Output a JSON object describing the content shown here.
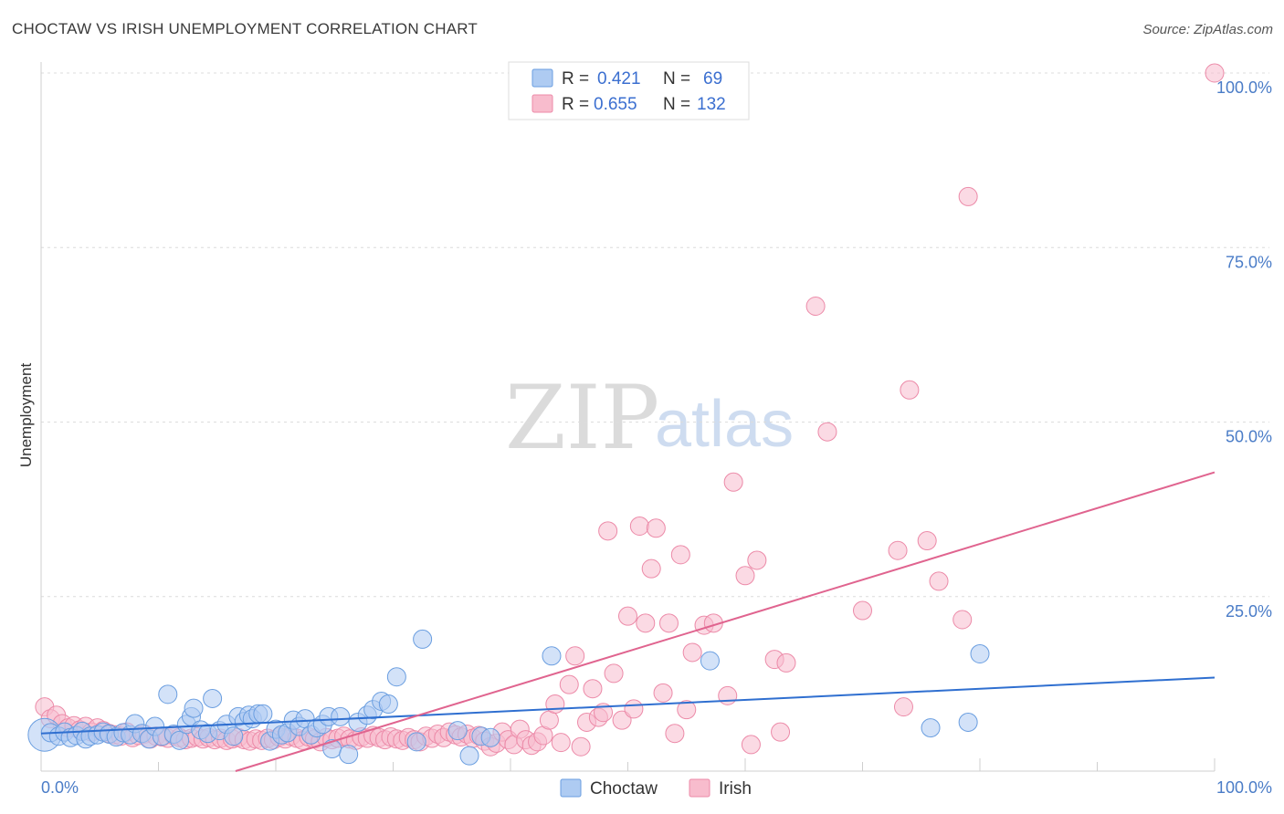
{
  "header": {
    "title": "CHOCTAW VS IRISH UNEMPLOYMENT CORRELATION CHART",
    "source": "Source: ZipAtlas.com"
  },
  "watermark": {
    "zip": "ZIP",
    "atlas": "atlas"
  },
  "legend": {
    "rows": [
      {
        "r_label": "R =",
        "r_value": "0.421",
        "n_label": "N =",
        "n_value": "69",
        "color": "#aecbf2"
      },
      {
        "r_label": "R =",
        "r_value": "0.655",
        "n_label": "N =",
        "n_value": "132",
        "color": "#f8bccd"
      }
    ]
  },
  "bottom_legend": {
    "items": [
      {
        "label": "Choctaw",
        "color": "#aecbf2"
      },
      {
        "label": "Irish",
        "color": "#f8bccd"
      }
    ]
  },
  "colors": {
    "choctaw_fill": "#aecbf2",
    "choctaw_stroke": "#6a9ee0",
    "choctaw_line": "#2f6fd0",
    "irish_fill": "#f8bccd",
    "irish_stroke": "#ec8aa8",
    "irish_line": "#e0648f",
    "tick_text": "#4a7cc7"
  },
  "chart_data": {
    "type": "scatter",
    "title": "CHOCTAW VS IRISH UNEMPLOYMENT CORRELATION CHART",
    "xlabel": "",
    "ylabel": "Unemployment",
    "xlim": [
      0,
      100
    ],
    "ylim": [
      0,
      100
    ],
    "x_tick_labels": [
      {
        "value": 0,
        "label": "0.0%"
      },
      {
        "value": 100,
        "label": "100.0%"
      }
    ],
    "y_tick_labels": [
      {
        "value": 25,
        "label": "25.0%"
      },
      {
        "value": 50,
        "label": "50.0%"
      },
      {
        "value": 75,
        "label": "75.0%"
      },
      {
        "value": 100,
        "label": "100.0%"
      }
    ],
    "grid": true,
    "legend_position": "top-center",
    "series": [
      {
        "name": "Choctaw",
        "r": 0.421,
        "n": 69,
        "trend": {
          "x": [
            0,
            100
          ],
          "y": [
            5.4,
            13.4
          ]
        },
        "points": [
          [
            0.3,
            5.2
          ],
          [
            0.8,
            5.5
          ],
          [
            1.5,
            5.0
          ],
          [
            2.0,
            5.6
          ],
          [
            2.5,
            4.8
          ],
          [
            3.0,
            5.1
          ],
          [
            3.5,
            5.7
          ],
          [
            3.8,
            4.6
          ],
          [
            4.2,
            5.0
          ],
          [
            4.8,
            5.2
          ],
          [
            5.3,
            5.6
          ],
          [
            5.8,
            5.3
          ],
          [
            6.4,
            4.9
          ],
          [
            7.0,
            5.5
          ],
          [
            7.6,
            5.2
          ],
          [
            8.0,
            6.8
          ],
          [
            8.6,
            5.4
          ],
          [
            9.2,
            4.6
          ],
          [
            9.7,
            6.4
          ],
          [
            10.3,
            5.0
          ],
          [
            10.8,
            11.0
          ],
          [
            11.3,
            5.3
          ],
          [
            11.8,
            4.4
          ],
          [
            12.4,
            6.7
          ],
          [
            12.8,
            7.8
          ],
          [
            13.0,
            9.0
          ],
          [
            13.6,
            5.9
          ],
          [
            14.2,
            5.4
          ],
          [
            14.6,
            10.4
          ],
          [
            15.2,
            5.8
          ],
          [
            15.8,
            6.7
          ],
          [
            16.4,
            5.0
          ],
          [
            16.8,
            7.8
          ],
          [
            17.3,
            7.1
          ],
          [
            17.7,
            8.0
          ],
          [
            18.0,
            7.5
          ],
          [
            18.5,
            8.2
          ],
          [
            18.9,
            8.2
          ],
          [
            19.5,
            4.3
          ],
          [
            20.0,
            6.0
          ],
          [
            20.5,
            5.2
          ],
          [
            21.0,
            5.5
          ],
          [
            21.5,
            7.3
          ],
          [
            22.0,
            6.4
          ],
          [
            22.5,
            7.5
          ],
          [
            23.0,
            5.2
          ],
          [
            23.5,
            6.2
          ],
          [
            24.0,
            6.7
          ],
          [
            24.5,
            7.8
          ],
          [
            24.8,
            3.2
          ],
          [
            25.5,
            7.8
          ],
          [
            26.2,
            2.4
          ],
          [
            27.0,
            7.0
          ],
          [
            27.8,
            8.0
          ],
          [
            28.3,
            8.8
          ],
          [
            29.0,
            10.0
          ],
          [
            29.6,
            9.6
          ],
          [
            30.3,
            13.5
          ],
          [
            32.0,
            4.2
          ],
          [
            32.5,
            18.9
          ],
          [
            35.5,
            5.8
          ],
          [
            36.5,
            2.2
          ],
          [
            37.5,
            5.0
          ],
          [
            38.3,
            4.8
          ],
          [
            43.5,
            16.5
          ],
          [
            57.0,
            15.8
          ],
          [
            75.8,
            6.2
          ],
          [
            79.0,
            7.0
          ],
          [
            80.0,
            16.8
          ]
        ],
        "sizes": [
          18,
          10,
          10,
          10,
          10,
          10,
          10,
          10,
          10,
          10,
          10,
          10,
          10,
          10,
          10,
          10,
          10,
          10,
          10,
          10,
          10,
          10,
          10,
          10,
          10,
          10,
          10,
          10,
          10,
          10,
          10,
          10,
          10,
          10,
          10,
          10,
          10,
          10,
          10,
          10,
          10,
          10,
          10,
          10,
          10,
          10,
          10,
          10,
          10,
          10,
          10,
          10,
          10,
          10,
          10,
          10,
          10,
          10,
          10,
          10,
          10,
          10,
          10,
          10,
          10,
          10,
          10,
          10,
          10
        ]
      },
      {
        "name": "Irish",
        "r": 0.655,
        "n": 132,
        "trend": {
          "x": [
            0,
            100
          ],
          "y": [
            -8.5,
            42.8
          ]
        },
        "points": [
          [
            0.3,
            9.2
          ],
          [
            0.8,
            7.5
          ],
          [
            1.3,
            8.0
          ],
          [
            1.8,
            6.8
          ],
          [
            2.3,
            6.2
          ],
          [
            2.8,
            6.5
          ],
          [
            3.3,
            5.9
          ],
          [
            3.8,
            6.4
          ],
          [
            4.3,
            5.6
          ],
          [
            4.8,
            6.2
          ],
          [
            5.3,
            5.8
          ],
          [
            5.8,
            5.4
          ],
          [
            6.3,
            5.2
          ],
          [
            6.8,
            5.0
          ],
          [
            7.3,
            5.6
          ],
          [
            7.8,
            4.8
          ],
          [
            8.3,
            5.1
          ],
          [
            8.8,
            5.3
          ],
          [
            9.3,
            4.6
          ],
          [
            9.8,
            5.0
          ],
          [
            10.3,
            4.9
          ],
          [
            10.8,
            4.7
          ],
          [
            11.3,
            5.1
          ],
          [
            11.8,
            4.8
          ],
          [
            12.3,
            4.5
          ],
          [
            12.8,
            4.7
          ],
          [
            13.3,
            4.9
          ],
          [
            13.8,
            4.6
          ],
          [
            14.3,
            4.8
          ],
          [
            14.8,
            4.5
          ],
          [
            15.3,
            4.7
          ],
          [
            15.8,
            4.4
          ],
          [
            16.3,
            4.6
          ],
          [
            16.8,
            4.8
          ],
          [
            17.3,
            4.5
          ],
          [
            17.8,
            4.3
          ],
          [
            18.3,
            4.6
          ],
          [
            18.8,
            4.4
          ],
          [
            19.3,
            4.7
          ],
          [
            19.8,
            4.5
          ],
          [
            20.3,
            4.9
          ],
          [
            20.8,
            4.6
          ],
          [
            21.3,
            5.0
          ],
          [
            21.8,
            4.7
          ],
          [
            22.3,
            4.4
          ],
          [
            22.8,
            4.9
          ],
          [
            23.3,
            4.6
          ],
          [
            23.8,
            4.2
          ],
          [
            24.3,
            4.8
          ],
          [
            24.8,
            4.5
          ],
          [
            25.3,
            4.7
          ],
          [
            25.8,
            5.0
          ],
          [
            26.3,
            4.6
          ],
          [
            26.8,
            4.4
          ],
          [
            27.3,
            4.9
          ],
          [
            27.8,
            4.7
          ],
          [
            28.3,
            5.1
          ],
          [
            28.8,
            4.8
          ],
          [
            29.3,
            4.5
          ],
          [
            29.8,
            4.9
          ],
          [
            30.3,
            4.6
          ],
          [
            30.8,
            4.4
          ],
          [
            31.3,
            4.8
          ],
          [
            31.8,
            4.5
          ],
          [
            32.3,
            4.2
          ],
          [
            32.8,
            5.0
          ],
          [
            33.3,
            4.7
          ],
          [
            33.8,
            5.3
          ],
          [
            34.3,
            4.8
          ],
          [
            34.8,
            5.6
          ],
          [
            35.3,
            5.2
          ],
          [
            35.8,
            4.9
          ],
          [
            36.3,
            5.3
          ],
          [
            36.8,
            4.7
          ],
          [
            37.3,
            5.1
          ],
          [
            37.8,
            4.3
          ],
          [
            38.3,
            3.5
          ],
          [
            38.8,
            4.0
          ],
          [
            39.3,
            5.6
          ],
          [
            39.8,
            4.5
          ],
          [
            40.3,
            3.8
          ],
          [
            40.8,
            6.0
          ],
          [
            41.3,
            4.5
          ],
          [
            41.8,
            3.7
          ],
          [
            42.3,
            4.2
          ],
          [
            42.8,
            5.1
          ],
          [
            43.3,
            7.3
          ],
          [
            43.8,
            9.6
          ],
          [
            44.3,
            4.1
          ],
          [
            45.0,
            12.4
          ],
          [
            45.5,
            16.5
          ],
          [
            46.0,
            3.5
          ],
          [
            46.5,
            7.0
          ],
          [
            47.0,
            11.8
          ],
          [
            47.5,
            7.7
          ],
          [
            47.9,
            8.4
          ],
          [
            48.3,
            34.4
          ],
          [
            48.8,
            14.0
          ],
          [
            49.5,
            7.3
          ],
          [
            50.0,
            22.2
          ],
          [
            50.5,
            8.9
          ],
          [
            51.0,
            35.1
          ],
          [
            51.5,
            21.2
          ],
          [
            52.0,
            29.0
          ],
          [
            52.4,
            34.8
          ],
          [
            53.0,
            11.2
          ],
          [
            53.5,
            21.2
          ],
          [
            54.0,
            5.4
          ],
          [
            54.5,
            31.0
          ],
          [
            55.0,
            8.8
          ],
          [
            55.5,
            17.0
          ],
          [
            56.5,
            20.9
          ],
          [
            57.3,
            21.2
          ],
          [
            58.5,
            10.8
          ],
          [
            59.0,
            41.4
          ],
          [
            60.0,
            28.0
          ],
          [
            60.5,
            3.8
          ],
          [
            61.0,
            30.2
          ],
          [
            62.5,
            16.0
          ],
          [
            63.0,
            5.6
          ],
          [
            63.5,
            15.5
          ],
          [
            66.0,
            66.6
          ],
          [
            67.0,
            48.6
          ],
          [
            70.0,
            23.0
          ],
          [
            73.0,
            31.6
          ],
          [
            73.5,
            9.2
          ],
          [
            74.0,
            54.6
          ],
          [
            75.5,
            33.0
          ],
          [
            76.5,
            27.2
          ],
          [
            78.5,
            21.7
          ],
          [
            79.0,
            82.3
          ],
          [
            100.0,
            100.0
          ]
        ],
        "sizes": [
          10,
          10,
          10,
          10,
          10,
          10,
          10,
          10,
          10,
          10,
          10,
          10,
          10,
          10,
          10,
          10,
          10,
          10,
          10,
          10,
          10,
          10,
          10,
          10,
          10,
          10,
          10,
          10,
          10,
          10,
          10,
          10,
          10,
          10,
          10,
          10,
          10,
          10,
          10,
          10,
          10,
          10,
          10,
          10,
          10,
          10,
          10,
          10,
          10,
          10,
          10,
          10,
          10,
          10,
          10,
          10,
          10,
          10,
          10,
          10,
          10,
          10,
          10,
          10,
          10,
          10,
          10,
          10,
          10,
          10,
          10,
          10,
          10,
          10,
          10,
          10,
          10,
          10,
          10,
          10,
          10,
          10,
          10,
          10,
          10,
          10,
          10,
          10,
          10,
          10,
          10,
          10,
          10,
          10,
          10,
          10,
          10,
          10,
          10,
          10,
          10,
          10,
          10,
          10,
          10,
          10,
          10,
          10,
          10,
          10,
          10,
          10,
          10,
          10,
          10,
          10,
          10,
          10,
          10,
          10,
          10,
          10,
          10,
          10,
          10,
          10,
          10,
          10,
          10,
          10,
          10,
          10
        ]
      }
    ]
  }
}
